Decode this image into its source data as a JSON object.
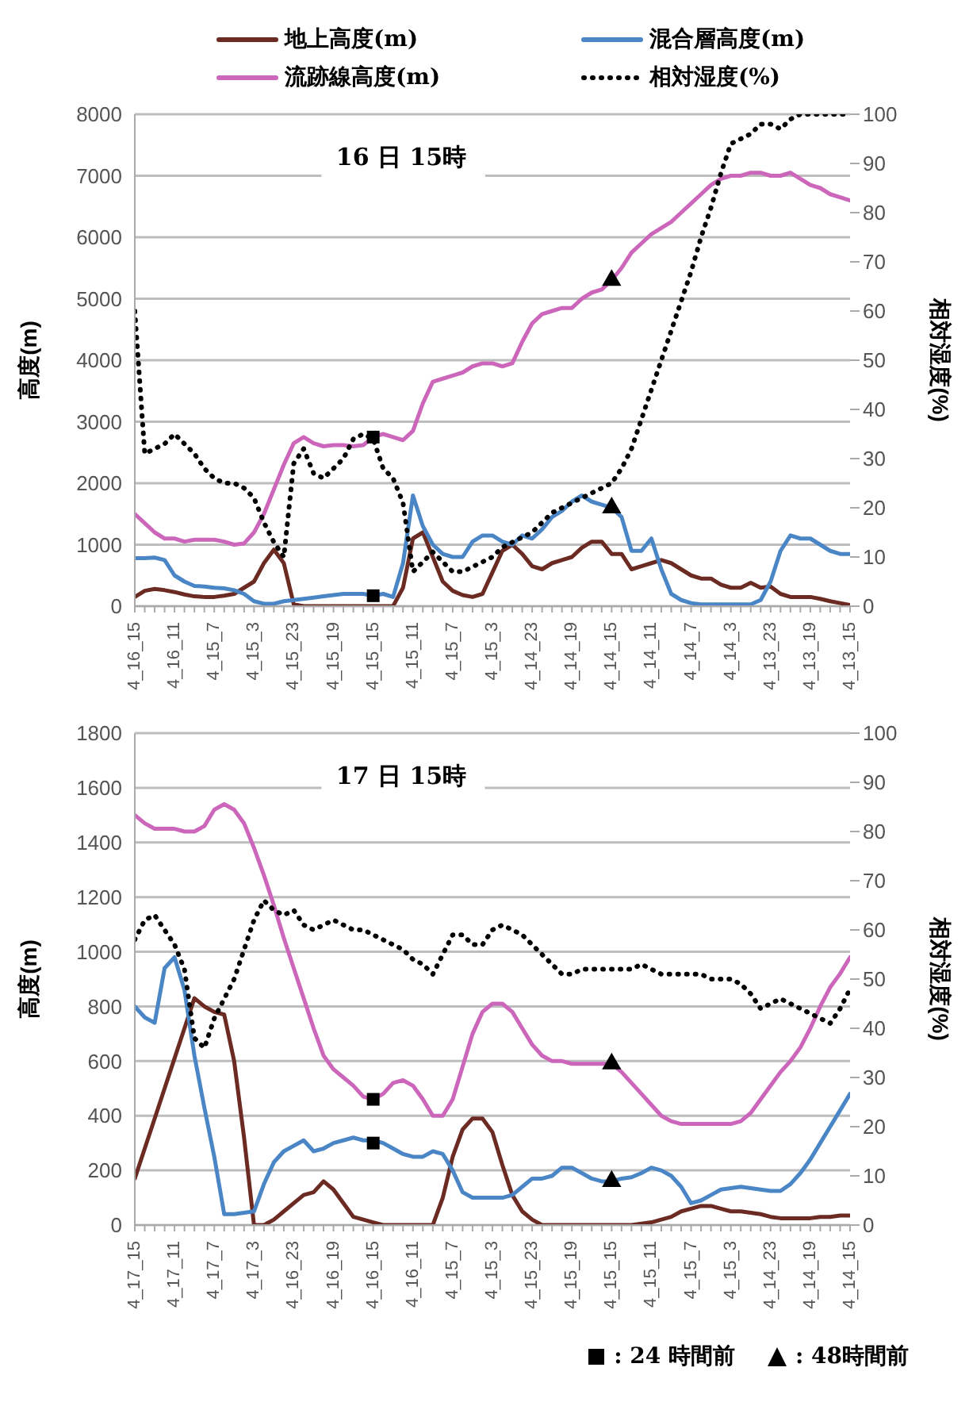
{
  "chart_data": [
    {
      "type": "line",
      "title": "16 日 15時",
      "ylabel": "高度(m)",
      "y2label": "相対湿度(%)",
      "grid": "y",
      "legend": "top",
      "marker": "none",
      "categories": [
        "4_16_15",
        null,
        null,
        null,
        "4_16_11",
        null,
        null,
        null,
        "4_15_7",
        null,
        null,
        null,
        "4_15_3",
        null,
        null,
        null,
        "4_15_23",
        null,
        null,
        null,
        "4_15_19",
        null,
        null,
        null,
        "4_15_15",
        null,
        null,
        null,
        "4_15_11",
        null,
        null,
        null,
        "4_15_7",
        null,
        null,
        null,
        "4_15_3",
        null,
        null,
        null,
        "4_14_23",
        null,
        null,
        null,
        "4_14_19",
        null,
        null,
        null,
        "4_14_15",
        null,
        null,
        null,
        "4_14_11",
        null,
        null,
        null,
        "4_14_7",
        null,
        null,
        null,
        "4_14_3",
        null,
        null,
        null,
        "4_13_23",
        null,
        null,
        null,
        "4_13_19",
        null,
        null,
        null,
        "4_13_15"
      ],
      "ylim": [
        0,
        8000
      ],
      "yticks": [
        0,
        1000,
        2000,
        3000,
        4000,
        5000,
        6000,
        7000,
        8000
      ],
      "y2lim": [
        0,
        100
      ],
      "y2ticks": [
        0,
        10,
        20,
        30,
        40,
        50,
        60,
        70,
        80,
        90,
        100
      ],
      "series": [
        {
          "name": "地上高度(m)",
          "color": "#6b2a22",
          "line_style": "solid",
          "values": [
            150,
            250,
            280,
            260,
            230,
            190,
            160,
            150,
            150,
            170,
            200,
            300,
            400,
            700,
            920,
            700,
            30,
            0,
            0,
            0,
            0,
            0,
            0,
            0,
            0,
            0,
            0,
            300,
            1100,
            1200,
            800,
            400,
            250,
            180,
            150,
            200,
            550,
            900,
            1000,
            850,
            650,
            600,
            700,
            750,
            800,
            950,
            1050,
            1050,
            850,
            850,
            600,
            650,
            700,
            750,
            700,
            600,
            500,
            450,
            450,
            350,
            300,
            300,
            380,
            300,
            320,
            200,
            150,
            150,
            150,
            120,
            80,
            50,
            20
          ]
        },
        {
          "name": "混合層高度(m)",
          "color": "#4a86c5",
          "line_style": "solid",
          "values": [
            780,
            780,
            790,
            750,
            500,
            400,
            330,
            320,
            300,
            290,
            260,
            200,
            80,
            40,
            40,
            80,
            100,
            120,
            140,
            160,
            180,
            200,
            200,
            200,
            170,
            200,
            150,
            700,
            1800,
            1300,
            1000,
            850,
            800,
            800,
            1050,
            1150,
            1150,
            1050,
            1000,
            1150,
            1100,
            1250,
            1450,
            1550,
            1700,
            1800,
            1700,
            1650,
            1600,
            1450,
            900,
            900,
            1100,
            600,
            200,
            100,
            50,
            30,
            30,
            30,
            30,
            30,
            30,
            100,
            400,
            900,
            1150,
            1100,
            1100,
            1000,
            900,
            850,
            850
          ]
        },
        {
          "name": "流跡線高度(m)",
          "color": "#cc66bb",
          "line_style": "solid",
          "values": [
            1500,
            1350,
            1200,
            1100,
            1100,
            1050,
            1080,
            1080,
            1080,
            1050,
            1000,
            1020,
            1200,
            1500,
            1900,
            2300,
            2650,
            2750,
            2650,
            2600,
            2620,
            2620,
            2600,
            2620,
            2750,
            2800,
            2750,
            2700,
            2850,
            3300,
            3650,
            3700,
            3750,
            3800,
            3900,
            3950,
            3950,
            3900,
            3950,
            4300,
            4600,
            4750,
            4800,
            4850,
            4850,
            5000,
            5100,
            5150,
            5300,
            5500,
            5750,
            5900,
            6050,
            6150,
            6250,
            6400,
            6550,
            6700,
            6850,
            6950,
            7000,
            7000,
            7050,
            7050,
            7000,
            7000,
            7050,
            6950,
            6850,
            6800,
            6700,
            6650,
            6600
          ]
        },
        {
          "name": "相対湿度(%)",
          "color": "#000000",
          "line_style": "dotted",
          "axis": "y2",
          "values": [
            60,
            31,
            32,
            33,
            35,
            33,
            31,
            28,
            26,
            25,
            25,
            24,
            22,
            17,
            13,
            10,
            29,
            32,
            27,
            26,
            28,
            30,
            34,
            35,
            34,
            28,
            26,
            21,
            7,
            9,
            11,
            9,
            7,
            7,
            8,
            9,
            10,
            12,
            13,
            14,
            15,
            17,
            19,
            20,
            21,
            22,
            23,
            24,
            25,
            28,
            32,
            38,
            44,
            50,
            56,
            62,
            68,
            75,
            81,
            88,
            94,
            95,
            96,
            98,
            98,
            97,
            99,
            100,
            100,
            100,
            100,
            100,
            100
          ]
        },
        {
          "type": "scatter",
          "marker": "square",
          "color": "#000000",
          "x": [
            "4_15_15",
            "4_15_15"
          ],
          "values": [
            2750,
            170
          ]
        },
        {
          "type": "scatter",
          "marker": "triangle",
          "color": "#000000",
          "x": [
            "4_14_15",
            "4_14_15"
          ],
          "values": [
            5300,
            1600
          ]
        }
      ]
    },
    {
      "type": "line",
      "title": "17 日 15時",
      "ylabel": "高度(m)",
      "y2label": "相対湿度(%)",
      "grid": "y",
      "legend": "bottom right",
      "marker": "none",
      "categories": [
        "4_17_15",
        null,
        null,
        null,
        "4_17_11",
        null,
        null,
        null,
        "4_17_7",
        null,
        null,
        null,
        "4_17_3",
        null,
        null,
        null,
        "4_16_23",
        null,
        null,
        null,
        "4_16_19",
        null,
        null,
        null,
        "4_16_15",
        null,
        null,
        null,
        "4_16_11",
        null,
        null,
        null,
        "4_15_7",
        null,
        null,
        null,
        "4_15_3",
        null,
        null,
        null,
        "4_15_23",
        null,
        null,
        null,
        "4_15_19",
        null,
        null,
        null,
        "4_15_15",
        null,
        null,
        null,
        "4_15_11",
        null,
        null,
        null,
        "4_15_7",
        null,
        null,
        null,
        "4_15_3",
        null,
        null,
        null,
        "4_14_23",
        null,
        null,
        null,
        "4_14_19",
        null,
        null,
        null,
        "4_14_15"
      ],
      "ylim": [
        0,
        1800
      ],
      "yticks": [
        0,
        200,
        400,
        600,
        800,
        1000,
        1200,
        1400,
        1600,
        1800
      ],
      "y2lim": [
        0,
        100
      ],
      "y2ticks": [
        0,
        10,
        20,
        30,
        40,
        50,
        60,
        70,
        80,
        90,
        100
      ],
      "series": [
        {
          "color": "#6b2a22",
          "line_style": "solid",
          "values": [
            170,
            280,
            390,
            500,
            610,
            720,
            830,
            800,
            780,
            770,
            600,
            320,
            0,
            0,
            20,
            50,
            80,
            110,
            120,
            160,
            130,
            80,
            30,
            20,
            10,
            0,
            0,
            0,
            0,
            0,
            0,
            100,
            250,
            350,
            390,
            390,
            340,
            220,
            110,
            50,
            20,
            0,
            0,
            0,
            0,
            0,
            0,
            0,
            0,
            0,
            0,
            5,
            10,
            20,
            30,
            50,
            60,
            70,
            70,
            60,
            50,
            50,
            45,
            40,
            30,
            25,
            25,
            25,
            25,
            30,
            30,
            35,
            35
          ]
        },
        {
          "color": "#4a86c5",
          "line_style": "solid",
          "values": [
            800,
            760,
            740,
            940,
            980,
            860,
            620,
            430,
            250,
            40,
            40,
            45,
            50,
            150,
            230,
            270,
            290,
            310,
            270,
            280,
            300,
            310,
            320,
            310,
            310,
            300,
            280,
            260,
            250,
            250,
            270,
            260,
            200,
            120,
            100,
            100,
            100,
            100,
            110,
            140,
            170,
            170,
            180,
            210,
            210,
            190,
            170,
            160,
            160,
            170,
            175,
            190,
            210,
            200,
            180,
            140,
            80,
            90,
            110,
            130,
            135,
            140,
            135,
            130,
            125,
            125,
            150,
            190,
            240,
            300,
            360,
            420,
            480
          ]
        },
        {
          "color": "#cc66bb",
          "line_style": "solid",
          "values": [
            1500,
            1470,
            1450,
            1450,
            1450,
            1440,
            1440,
            1460,
            1520,
            1540,
            1520,
            1470,
            1380,
            1280,
            1170,
            1050,
            940,
            830,
            720,
            620,
            570,
            540,
            510,
            470,
            460,
            480,
            520,
            530,
            510,
            460,
            400,
            400,
            460,
            580,
            700,
            780,
            810,
            810,
            780,
            720,
            660,
            620,
            600,
            600,
            590,
            590,
            590,
            590,
            590,
            560,
            520,
            480,
            440,
            400,
            380,
            370,
            370,
            370,
            370,
            370,
            370,
            380,
            410,
            460,
            510,
            560,
            600,
            650,
            720,
            800,
            870,
            920,
            980
          ]
        },
        {
          "color": "#000000",
          "line_style": "dotted",
          "axis": "y2",
          "values": [
            58,
            62,
            63,
            60,
            57,
            52,
            38,
            36,
            42,
            46,
            50,
            56,
            62,
            66,
            64,
            63,
            64,
            61,
            60,
            61,
            62,
            61,
            60,
            60,
            59,
            58,
            57,
            56,
            54,
            53,
            51,
            55,
            59,
            59,
            57,
            57,
            60,
            61,
            60,
            59,
            57,
            55,
            53,
            51,
            51,
            52,
            52,
            52,
            52,
            52,
            52,
            53,
            52,
            51,
            51,
            51,
            51,
            51,
            50,
            50,
            50,
            49,
            47,
            44,
            45,
            46,
            45,
            44,
            43,
            42,
            41,
            44,
            48
          ]
        },
        {
          "type": "scatter",
          "name": ": 24 時間前",
          "marker": "square",
          "color": "#000000",
          "x": [
            "4_16_15",
            "4_16_15"
          ],
          "values": [
            460,
            300
          ]
        },
        {
          "type": "scatter",
          "name": ": 48時間前",
          "marker": "triangle",
          "color": "#000000",
          "x": [
            "4_15_15",
            "4_15_15"
          ],
          "values": [
            590,
            160
          ]
        }
      ]
    }
  ]
}
